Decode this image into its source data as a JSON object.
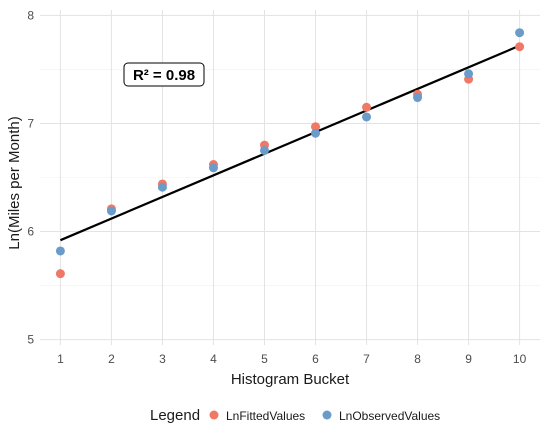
{
  "chart_data": {
    "type": "scatter",
    "xlabel": "Histogram Bucket",
    "ylabel": "Ln(Miles per Month)",
    "xlim": [
      0.6,
      10.4
    ],
    "ylim": [
      4.95,
      8.05
    ],
    "xticks": [
      1,
      2,
      3,
      4,
      5,
      6,
      7,
      8,
      9,
      10
    ],
    "yticks": [
      5,
      6,
      7,
      8
    ],
    "grid": true,
    "annotation": "R² = 0.98",
    "legend": {
      "title": "Legend",
      "position": "bottom",
      "entries": [
        "LnFittedValues",
        "LnObservedValues"
      ]
    },
    "series": [
      {
        "name": "LnFittedValues",
        "color": "#f07867",
        "x": [
          1,
          2,
          3,
          4,
          5,
          6,
          7,
          8,
          9,
          10
        ],
        "y": [
          5.61,
          6.21,
          6.44,
          6.62,
          6.8,
          6.97,
          7.15,
          7.27,
          7.41,
          7.71
        ]
      },
      {
        "name": "LnObservedValues",
        "color": "#6b9bc9",
        "x": [
          1,
          2,
          3,
          4,
          5,
          6,
          7,
          8,
          9,
          10
        ],
        "y": [
          5.82,
          6.19,
          6.41,
          6.59,
          6.75,
          6.91,
          7.06,
          7.24,
          7.46,
          7.84
        ]
      }
    ],
    "fit_line": {
      "color": "#000000",
      "x": [
        1,
        10
      ],
      "y": [
        5.92,
        7.72
      ]
    }
  }
}
